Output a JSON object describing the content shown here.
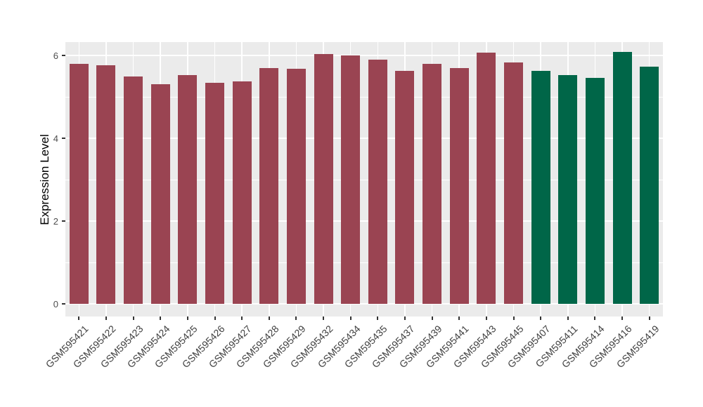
{
  "figure": {
    "background": "#ffffff",
    "panel_background": "#ebebeb",
    "grid_color": "#ffffff",
    "tick_color": "#333333",
    "axis_text_color": "#404040"
  },
  "chart_data": {
    "type": "bar",
    "title": "",
    "xlabel": "",
    "ylabel": "Expression Level",
    "y_ticks": [
      0,
      2,
      4,
      6
    ],
    "y_minor_ticks": [
      1,
      3,
      5
    ],
    "ylim": [
      -0.3,
      6.32
    ],
    "grid": "on",
    "legend": "none",
    "groups": {
      "group1": {
        "color": "#9a4452"
      },
      "group2": {
        "color": "#006648"
      }
    },
    "bars": [
      {
        "label": "GSM595421",
        "value": 5.8,
        "group": "group1"
      },
      {
        "label": "GSM595422",
        "value": 5.77,
        "group": "group1"
      },
      {
        "label": "GSM595423",
        "value": 5.49,
        "group": "group1"
      },
      {
        "label": "GSM595424",
        "value": 5.31,
        "group": "group1"
      },
      {
        "label": "GSM595425",
        "value": 5.52,
        "group": "group1"
      },
      {
        "label": "GSM595426",
        "value": 5.34,
        "group": "group1"
      },
      {
        "label": "GSM595427",
        "value": 5.37,
        "group": "group1"
      },
      {
        "label": "GSM595428",
        "value": 5.7,
        "group": "group1"
      },
      {
        "label": "GSM595429",
        "value": 5.68,
        "group": "group1"
      },
      {
        "label": "GSM595432",
        "value": 6.04,
        "group": "group1"
      },
      {
        "label": "GSM595434",
        "value": 6.0,
        "group": "group1"
      },
      {
        "label": "GSM595435",
        "value": 5.89,
        "group": "group1"
      },
      {
        "label": "GSM595437",
        "value": 5.62,
        "group": "group1"
      },
      {
        "label": "GSM595439",
        "value": 5.79,
        "group": "group1"
      },
      {
        "label": "GSM595441",
        "value": 5.7,
        "group": "group1"
      },
      {
        "label": "GSM595443",
        "value": 6.07,
        "group": "group1"
      },
      {
        "label": "GSM595445",
        "value": 5.83,
        "group": "group1"
      },
      {
        "label": "GSM595407",
        "value": 5.63,
        "group": "group2"
      },
      {
        "label": "GSM595411",
        "value": 5.52,
        "group": "group2"
      },
      {
        "label": "GSM595414",
        "value": 5.45,
        "group": "group2"
      },
      {
        "label": "GSM595416",
        "value": 6.09,
        "group": "group2"
      },
      {
        "label": "GSM595419",
        "value": 5.73,
        "group": "group2"
      }
    ]
  }
}
